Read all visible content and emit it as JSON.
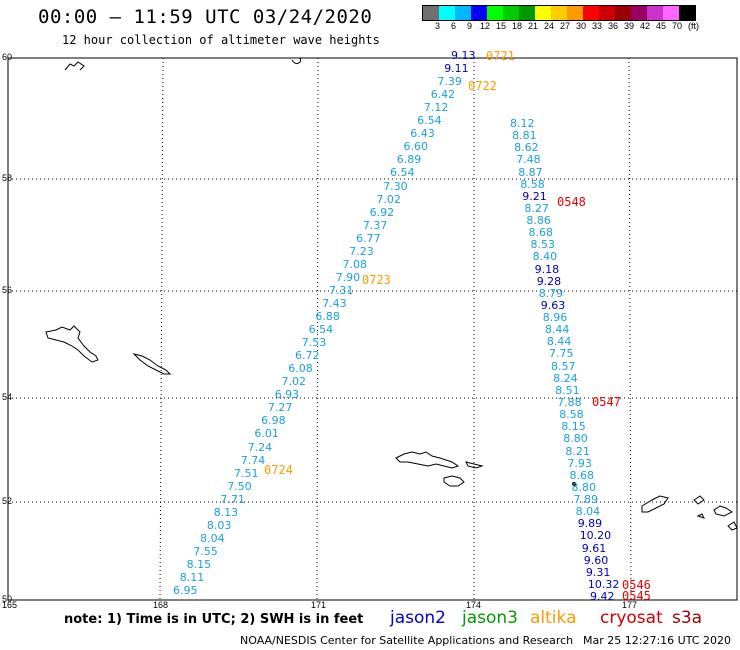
{
  "title": "00:00 – 11:59 UTC 03/24/2020",
  "subtitle": "12 hour collection of altimeter wave heights",
  "colorbar": {
    "colors": [
      "#707070",
      "#00ffff",
      "#00b8ff",
      "#0000ff",
      "#00ff00",
      "#00cc00",
      "#009900",
      "#ffff00",
      "#ffcc00",
      "#ff9900",
      "#ff0000",
      "#cc0000",
      "#990000",
      "#990066",
      "#cc33cc",
      "#ff66ff",
      "#000000"
    ],
    "labels": [
      "3",
      "6",
      "9",
      "12",
      "15",
      "18",
      "21",
      "24",
      "27",
      "30",
      "33",
      "36",
      "39",
      "42",
      "45",
      "70",
      "(ft)"
    ]
  },
  "lat_labels": [
    "60",
    "58",
    "56",
    "54",
    "52",
    "50"
  ],
  "lon_labels": [
    "165",
    "168",
    "171",
    "174",
    "177"
  ],
  "note": "note:  1) Time is in UTC;  2) SWH is in feet",
  "satellites": [
    {
      "name": "jason2",
      "color": "#0000cc"
    },
    {
      "name": "jason3",
      "color": "#009900"
    },
    {
      "name": "altika",
      "color": "#ff9900"
    },
    {
      "name": "cryosat",
      "color": "#cc0000"
    },
    {
      "name": "s3a",
      "color": "#990000"
    }
  ],
  "credit": "NOAA/NESDIS Center for Satellite Applications and Research",
  "credit_time": "Mar 25 12:27:16 UTC 2020",
  "track_a": {
    "color_light": "#1aa0e0",
    "color_dark": "#0000b0",
    "values": [
      "9.13",
      "9.11",
      "7.39",
      "6.42",
      "7.12",
      "6.54",
      "6.43",
      "6.60",
      "6.89",
      "6.54",
      "7.30",
      "7.02",
      "6.92",
      "7.37",
      "6.77",
      "7.23",
      "7.08",
      "7.90",
      "7.31",
      "7.43",
      "6.88",
      "6.54",
      "7.53",
      "6.72",
      "6.08",
      "7.02",
      "6.93",
      "7.27",
      "6.98",
      "6.01",
      "7.24",
      "7.74",
      "7.51",
      "7.50",
      "7.71",
      "8.13",
      "8.03",
      "8.04",
      "7.55",
      "8.15",
      "8.11",
      "6.95"
    ]
  },
  "track_b": {
    "values": [
      "8.12",
      "8.81",
      "8.62",
      "7.48",
      "8.87",
      "8.58",
      "9.21",
      "8.27",
      "8.86",
      "8.68",
      "8.53",
      "8.40",
      "9.18",
      "9.28",
      "8.79",
      "9.63",
      "8.96",
      "8.44",
      "8.44",
      "7.75",
      "8.57",
      "8.24",
      "8.51",
      "7.88",
      "8.58",
      "8.15",
      "8.80",
      "8.21",
      "7.93",
      "8.68",
      "8.80",
      "7.89",
      "8.04",
      "9.89",
      "10.20",
      "9.61",
      "9.60",
      "9.31",
      "10.32",
      "9.42"
    ]
  },
  "time_labels": {
    "altika": [
      "0721",
      "0722",
      "0723",
      "0724"
    ],
    "cryosat": [
      "0548",
      "0547",
      "0546",
      "0545"
    ]
  }
}
